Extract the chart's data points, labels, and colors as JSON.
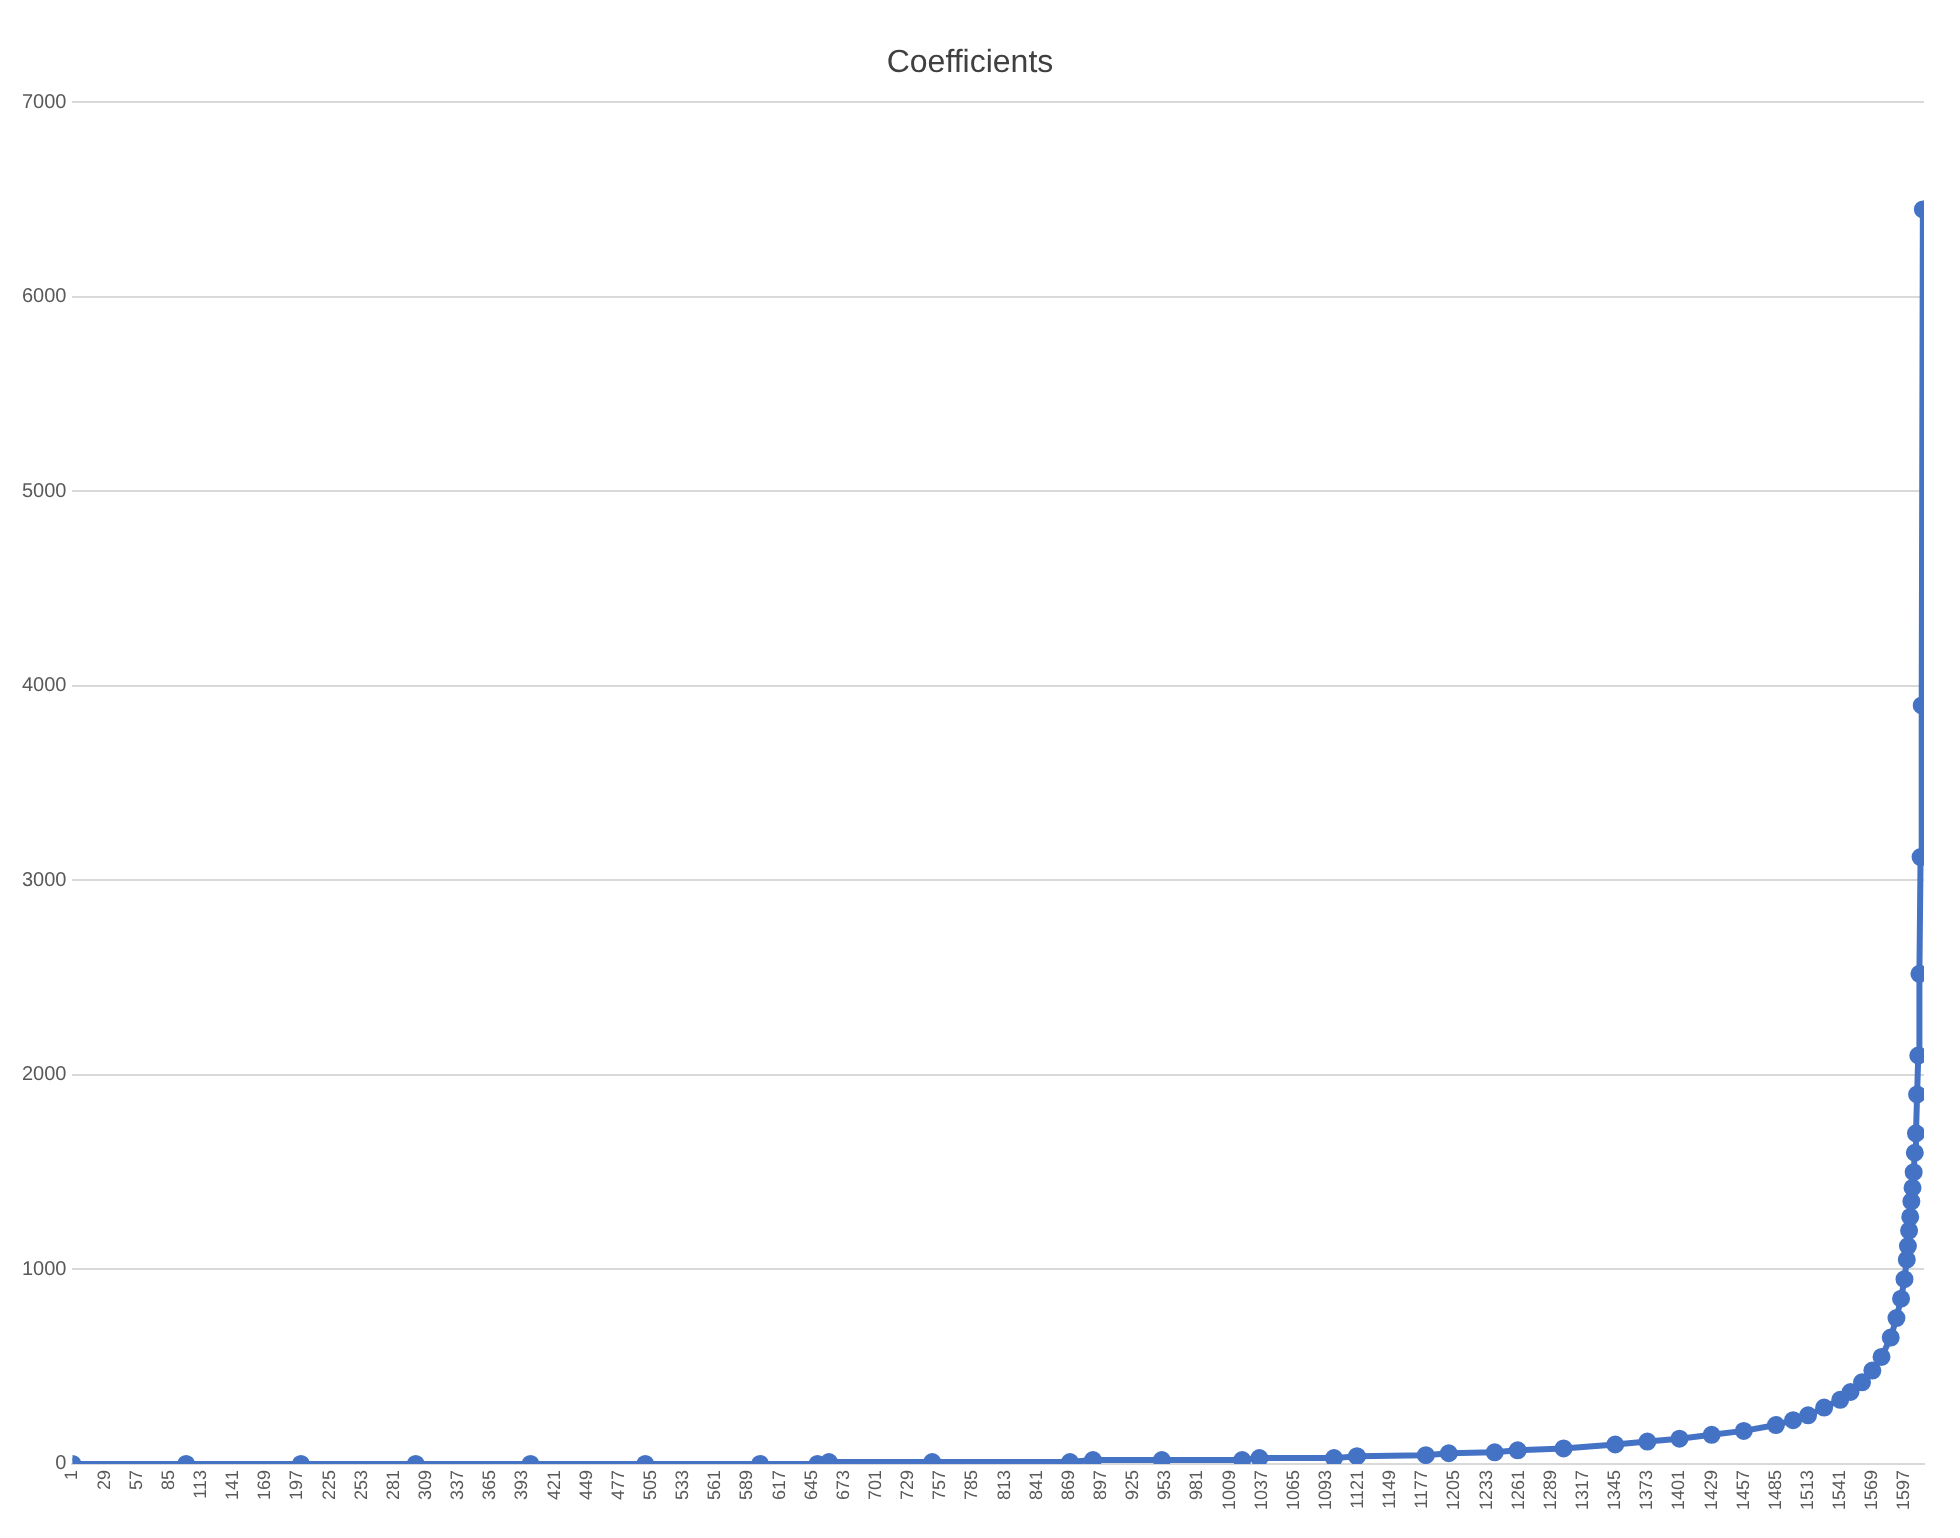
{
  "chart_data": {
    "type": "line",
    "title": "Coefficients",
    "x": [
      1,
      100,
      200,
      300,
      400,
      500,
      600,
      650,
      660,
      750,
      870,
      890,
      950,
      1020,
      1035,
      1100,
      1120,
      1180,
      1200,
      1240,
      1260,
      1300,
      1345,
      1373,
      1401,
      1429,
      1457,
      1485,
      1500,
      1513,
      1527,
      1541,
      1550,
      1560,
      1569,
      1577,
      1585,
      1590,
      1594,
      1597,
      1599,
      1600,
      1601,
      1602,
      1603,
      1604,
      1605,
      1606,
      1607,
      1608,
      1609,
      1610,
      1611,
      1612,
      1613
    ],
    "series": [
      {
        "color": "#4472c4",
        "values": [
          0,
          0,
          0,
          0,
          0,
          0,
          0,
          0,
          10,
          10,
          10,
          20,
          20,
          20,
          30,
          30,
          40,
          45,
          55,
          60,
          70,
          80,
          100,
          115,
          130,
          150,
          170,
          200,
          225,
          250,
          290,
          330,
          370,
          420,
          480,
          550,
          650,
          750,
          850,
          950,
          1050,
          1120,
          1200,
          1270,
          1350,
          1420,
          1500,
          1600,
          1700,
          1900,
          2100,
          2520,
          3120,
          3900,
          6450
        ]
      }
    ],
    "xlim": [
      1,
      1614
    ],
    "xticks": [
      1,
      29,
      57,
      85,
      113,
      141,
      169,
      197,
      225,
      253,
      281,
      309,
      337,
      365,
      393,
      421,
      449,
      477,
      505,
      533,
      561,
      589,
      617,
      645,
      673,
      701,
      729,
      757,
      785,
      813,
      841,
      869,
      897,
      925,
      953,
      981,
      1009,
      1037,
      1065,
      1093,
      1121,
      1149,
      1177,
      1205,
      1233,
      1261,
      1289,
      1317,
      1345,
      1373,
      1401,
      1429,
      1457,
      1485,
      1513,
      1541,
      1569,
      1597
    ],
    "ylim": [
      0,
      7000
    ],
    "yticks": [
      0,
      1000,
      2000,
      3000,
      4000,
      5000,
      6000,
      7000
    ],
    "grid": "y",
    "legend": false,
    "marker": "circle",
    "line_style": "solid"
  }
}
